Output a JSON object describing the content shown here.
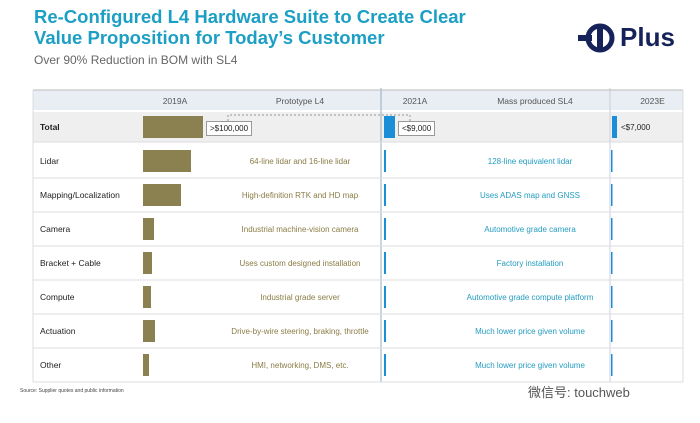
{
  "header": {
    "title": "Re-Configured L4 Hardware Suite to Create Clear Value Proposition for Today’s Customer",
    "subtitle": "Over 90% Reduction in BOM with SL4",
    "logo": "Plus"
  },
  "table": {
    "columns": [
      "2019A",
      "Prototype L4",
      "2021A",
      "Mass produced SL4",
      "2023E"
    ],
    "total": {
      "label": "Total",
      "values": [
        ">$100,000",
        "<$9,000",
        "<$7,000"
      ]
    },
    "rows": [
      {
        "label": "Lidar",
        "prototype": "64-line lidar and 16-line lidar",
        "mass": "128-line equivalent lidar"
      },
      {
        "label": "Mapping/Localization",
        "prototype": "High-definition RTK and HD map",
        "mass": "Uses ADAS map and GNSS"
      },
      {
        "label": "Camera",
        "prototype": "Industrial machine-vision camera",
        "mass": "Automotive grade camera"
      },
      {
        "label": "Bracket + Cable",
        "prototype": "Uses custom designed installation",
        "mass": "Factory installation"
      },
      {
        "label": "Compute",
        "prototype": "Industrial grade server",
        "mass": "Automotive grade compute platform"
      },
      {
        "label": "Actuation",
        "prototype": "Drive-by-wire steering, braking, throttle",
        "mass": "Much lower price given volume"
      },
      {
        "label": "Other",
        "prototype": "HMI, networking, DMS, etc.",
        "mass": "Much lower price given volume"
      }
    ]
  },
  "footnote": "Source: Supplier quotes and public information",
  "watermark": "微信号: touchweb"
}
